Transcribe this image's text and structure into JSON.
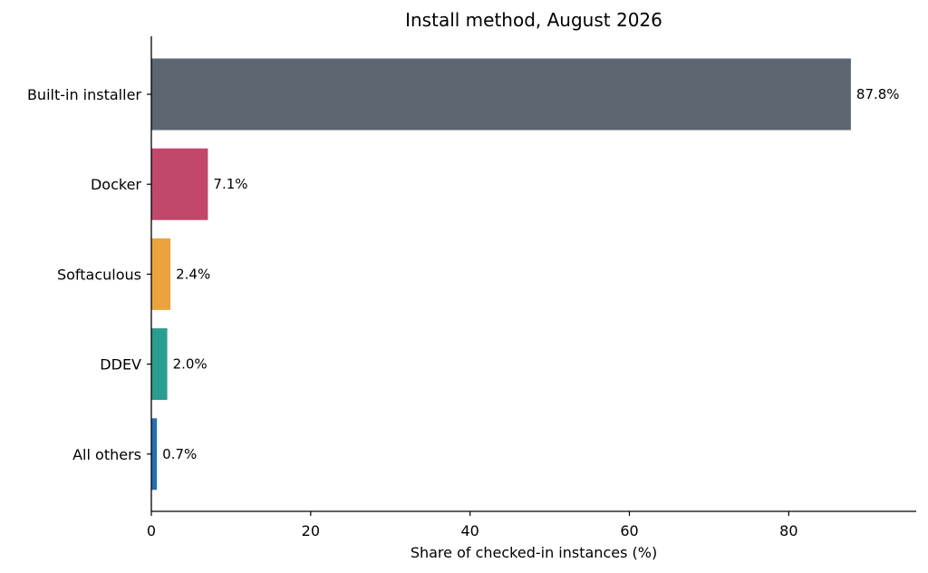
{
  "chart_data": {
    "type": "bar",
    "orientation": "horizontal",
    "title": "Install method, August 2026",
    "xlabel": "Share of checked-in instances (%)",
    "ylabel": "",
    "categories": [
      "Built-in installer",
      "Docker",
      "Softaculous",
      "DDEV",
      "All others"
    ],
    "values": [
      87.8,
      7.1,
      2.4,
      2.0,
      0.7
    ],
    "data_labels": [
      "87.8%",
      "7.1%",
      "2.4%",
      "2.0%",
      "0.7%"
    ],
    "colors": [
      "#5b6670",
      "#c2486b",
      "#eba23f",
      "#2a9d8f",
      "#2370b5"
    ],
    "xlim": [
      0,
      96
    ],
    "xticks": [
      0,
      20,
      40,
      60,
      80
    ],
    "grid": false,
    "legend": "none"
  }
}
